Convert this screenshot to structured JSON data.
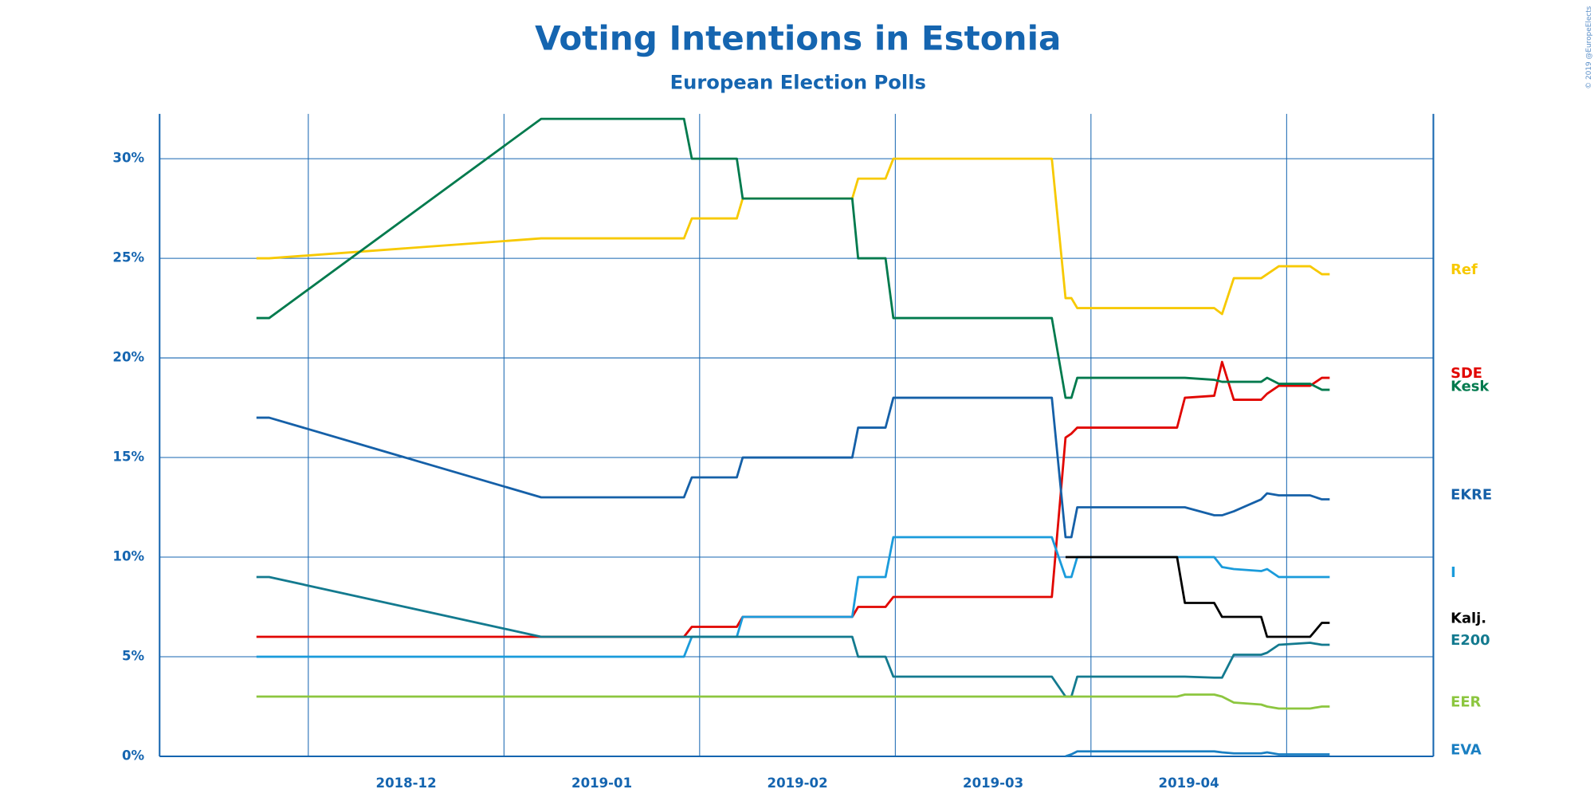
{
  "chart_data": {
    "type": "line",
    "title": "Voting Intentions in Estonia",
    "subtitle": "European Election Polls",
    "annotation": "© 2019 @EuropeElects",
    "x": [
      11.735,
      11.8,
      13.19,
      13.92,
      13.96,
      14.19,
      14.22,
      14.78,
      14.81,
      14.95,
      14.99,
      15.8,
      15.87,
      15.9,
      15.93,
      16.44,
      16.48,
      16.63,
      16.67,
      16.73,
      16.87,
      16.9,
      16.96,
      17.12,
      17.18,
      17.22
    ],
    "xlim": [
      11.24,
      17.75
    ],
    "xticks": [
      {
        "value": 12,
        "label": "2018-12"
      },
      {
        "value": 13,
        "label": "2019-01"
      },
      {
        "value": 14,
        "label": "2019-02"
      },
      {
        "value": 15,
        "label": "2019-03"
      },
      {
        "value": 16,
        "label": "2019-04"
      },
      {
        "value": 17,
        "label": null
      }
    ],
    "ylim": [
      0,
      32.25
    ],
    "yticks": [
      {
        "value": 0,
        "label": "0%"
      },
      {
        "value": 5,
        "label": "5%"
      },
      {
        "value": 10,
        "label": "10%"
      },
      {
        "value": 15,
        "label": "15%"
      },
      {
        "value": 20,
        "label": "20%"
      },
      {
        "value": 25,
        "label": "25%"
      },
      {
        "value": 30,
        "label": "30%"
      }
    ],
    "grid": true,
    "series": [
      {
        "name": "Ref",
        "color": "#f7c900",
        "values": [
          25,
          25,
          26,
          26,
          27,
          27,
          28,
          28,
          29,
          29,
          30,
          30,
          23,
          23,
          22.5,
          22.5,
          22.5,
          22.5,
          22.2,
          24,
          24,
          24.2,
          24.6,
          24.6,
          24.2,
          24.2
        ]
      },
      {
        "name": "SDE",
        "color": "#e10600",
        "values": [
          6,
          6,
          6,
          6,
          6.5,
          6.5,
          7,
          7,
          7.5,
          7.5,
          8,
          8,
          16,
          16.2,
          16.5,
          16.5,
          18,
          18.1,
          19.8,
          17.9,
          17.9,
          18.2,
          18.6,
          18.6,
          19,
          19
        ]
      },
      {
        "name": "Kesk",
        "color": "#007a4d",
        "values": [
          22,
          22,
          32,
          32,
          30,
          30,
          28,
          28,
          25,
          25,
          22,
          22,
          18,
          18,
          19,
          19,
          19,
          18.9,
          18.8,
          18.8,
          18.8,
          19,
          18.7,
          18.7,
          18.4,
          18.4
        ]
      },
      {
        "name": "EKRE",
        "color": "#1560a8",
        "values": [
          17,
          17,
          13,
          13,
          14,
          14,
          15,
          15,
          16.5,
          16.5,
          18,
          18,
          11,
          11,
          12.5,
          12.5,
          12.5,
          12.1,
          12.1,
          12.3,
          12.9,
          13.2,
          13.1,
          13.1,
          12.9,
          12.9
        ]
      },
      {
        "name": "I",
        "color": "#1a9bdb",
        "values": [
          5,
          5,
          5,
          5,
          6,
          6,
          7,
          7,
          9,
          9,
          11,
          11,
          9,
          9,
          10,
          10,
          10,
          10,
          9.5,
          9.4,
          9.3,
          9.4,
          9,
          9,
          9,
          9
        ]
      },
      {
        "name": "Kalj.",
        "color": "#000000",
        "values": [
          null,
          null,
          null,
          null,
          null,
          null,
          null,
          null,
          null,
          null,
          null,
          null,
          10,
          10,
          10,
          10,
          7.7,
          7.7,
          7,
          7,
          7,
          6,
          6,
          6,
          6.7,
          6.7
        ]
      },
      {
        "name": "E200",
        "color": "#137a8f",
        "values": [
          9,
          9,
          6,
          6,
          6,
          6,
          6,
          6,
          5,
          5,
          4,
          4,
          3,
          3,
          4,
          4,
          4,
          3.95,
          3.95,
          5.1,
          5.1,
          5.2,
          5.6,
          5.7,
          5.6,
          5.6
        ]
      },
      {
        "name": "EER",
        "color": "#8cc63f",
        "values": [
          3,
          3,
          3,
          3,
          3,
          3,
          3,
          3,
          3,
          3,
          3,
          3,
          3,
          3,
          3,
          3,
          3.1,
          3.1,
          3.0,
          2.7,
          2.6,
          2.5,
          2.4,
          2.4,
          2.5,
          2.5
        ]
      },
      {
        "name": "EVA",
        "color": "#1a7fc2",
        "values": [
          null,
          null,
          null,
          null,
          null,
          null,
          null,
          null,
          null,
          null,
          null,
          null,
          0,
          0.1,
          0.25,
          0.25,
          0.25,
          0.25,
          0.2,
          0.15,
          0.15,
          0.2,
          0.1,
          0.1,
          0.1,
          0.1
        ]
      }
    ]
  }
}
